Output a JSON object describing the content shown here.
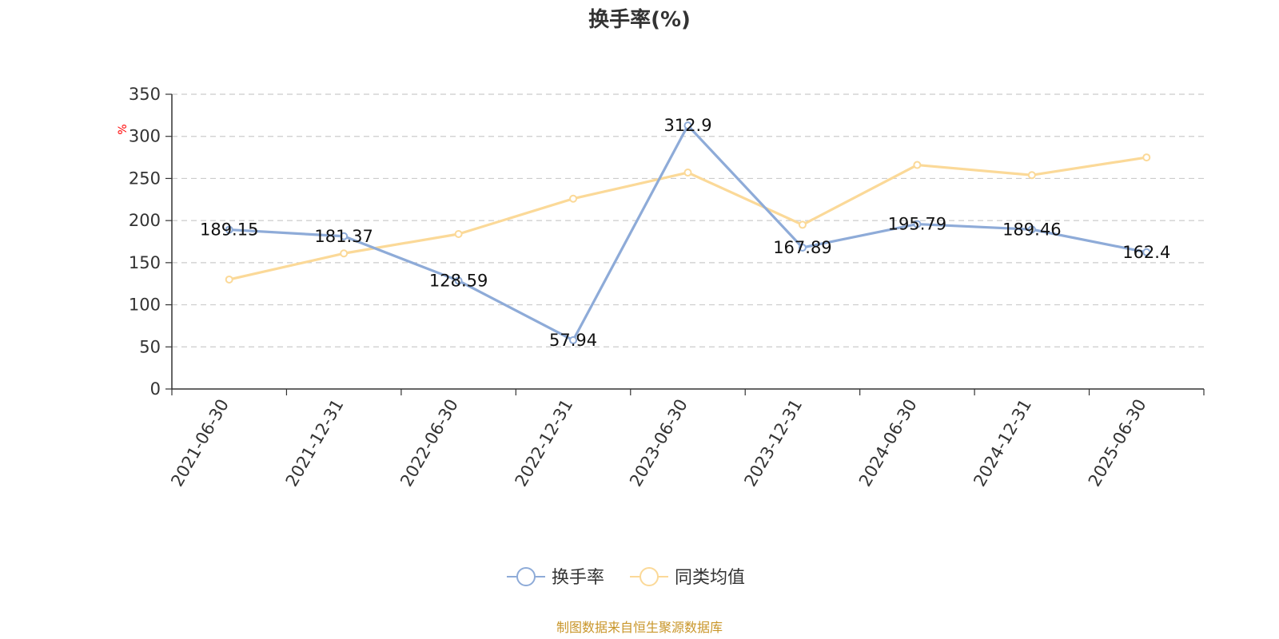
{
  "chart_data": {
    "type": "line",
    "title": "换手率(%)",
    "ylabel": "%",
    "ylim": [
      0,
      350
    ],
    "yticks": [
      0,
      50,
      100,
      150,
      200,
      250,
      300,
      350
    ],
    "categories": [
      "2021-06-30",
      "2021-12-31",
      "2022-06-30",
      "2022-12-31",
      "2023-06-30",
      "2023-12-31",
      "2024-06-30",
      "2024-12-31",
      "2025-06-30"
    ],
    "series": [
      {
        "name": "换手率",
        "color": "#8eabd8",
        "values": [
          189.15,
          181.37,
          128.59,
          57.94,
          312.9,
          167.89,
          195.79,
          189.46,
          162.4
        ],
        "labels": [
          "189.15",
          "181.37",
          "128.59",
          "57.94",
          "312.9",
          "167.89",
          "195.79",
          "189.46",
          "162.4"
        ],
        "show_labels": true
      },
      {
        "name": "同类均值",
        "color": "#fbd998",
        "values": [
          130,
          161,
          184,
          226,
          257,
          195,
          266,
          254,
          275
        ],
        "show_labels": false
      }
    ],
    "grid": true,
    "legend_position": "bottom-center"
  },
  "footer": {
    "source": "制图数据来自恒生聚源数据库"
  }
}
